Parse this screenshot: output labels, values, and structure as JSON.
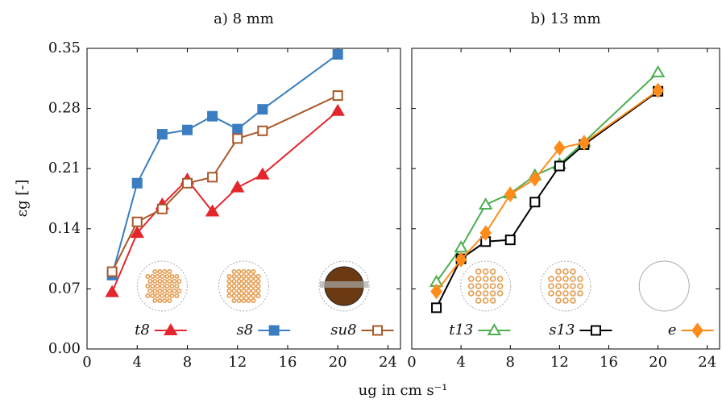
{
  "chart_data": [
    {
      "type": "line",
      "title": "a) 8 mm",
      "x": [
        2,
        4,
        6,
        8,
        10,
        12,
        14,
        20
      ],
      "xlim": [
        0,
        25
      ],
      "xticks": [
        0,
        4,
        8,
        12,
        16,
        20,
        24
      ],
      "ylim": [
        0,
        0.35
      ],
      "yticks": [
        {
          "value": 0,
          "label": "0.00"
        },
        0.07,
        0.14,
        0.21,
        0.28,
        0.35
      ],
      "series": [
        {
          "name": "t8",
          "color": "#e3262d",
          "marker": "triangle",
          "filled": true,
          "values": [
            0.066,
            0.135,
            0.168,
            0.197,
            0.16,
            0.188,
            0.203,
            0.277
          ]
        },
        {
          "name": "s8",
          "color": "#3a7dc0",
          "marker": "square",
          "filled": true,
          "values": [
            0.086,
            0.193,
            0.25,
            0.255,
            0.271,
            0.256,
            0.279,
            0.343
          ]
        },
        {
          "name": "su8",
          "color": "#a9582a",
          "marker": "square",
          "filled": false,
          "values": [
            0.09,
            0.148,
            0.163,
            0.193,
            0.2,
            0.245,
            0.254,
            0.295
          ]
        }
      ]
    },
    {
      "type": "line",
      "title": "b) 13 mm",
      "x": [
        2,
        4,
        6,
        8,
        10,
        12,
        14,
        20
      ],
      "xlim": [
        0,
        25
      ],
      "xticks": [
        0,
        4,
        8,
        12,
        16,
        20,
        24
      ],
      "ylim": [
        0,
        0.35
      ],
      "yticks": [
        0,
        0.07,
        0.14,
        0.21,
        0.28,
        0.35
      ],
      "series": [
        {
          "name": "t13",
          "color": "#4caf50",
          "marker": "triangle",
          "filled": false,
          "values": [
            0.078,
            0.118,
            0.168,
            0.181,
            0.202,
            0.215,
            0.241,
            0.322
          ]
        },
        {
          "name": "s13",
          "color": "#000000",
          "marker": "square",
          "filled": false,
          "values": [
            0.048,
            0.105,
            0.125,
            0.127,
            0.171,
            0.213,
            0.238,
            0.3
          ]
        },
        {
          "name": "e",
          "color": "#ff8c1a",
          "marker": "diamond",
          "filled": true,
          "values": [
            0.067,
            0.104,
            0.135,
            0.18,
            0.198,
            0.234,
            0.24,
            0.301
          ]
        }
      ]
    }
  ],
  "xlabel": "ug in cm s⁻¹",
  "ylabel": "εg [-]"
}
